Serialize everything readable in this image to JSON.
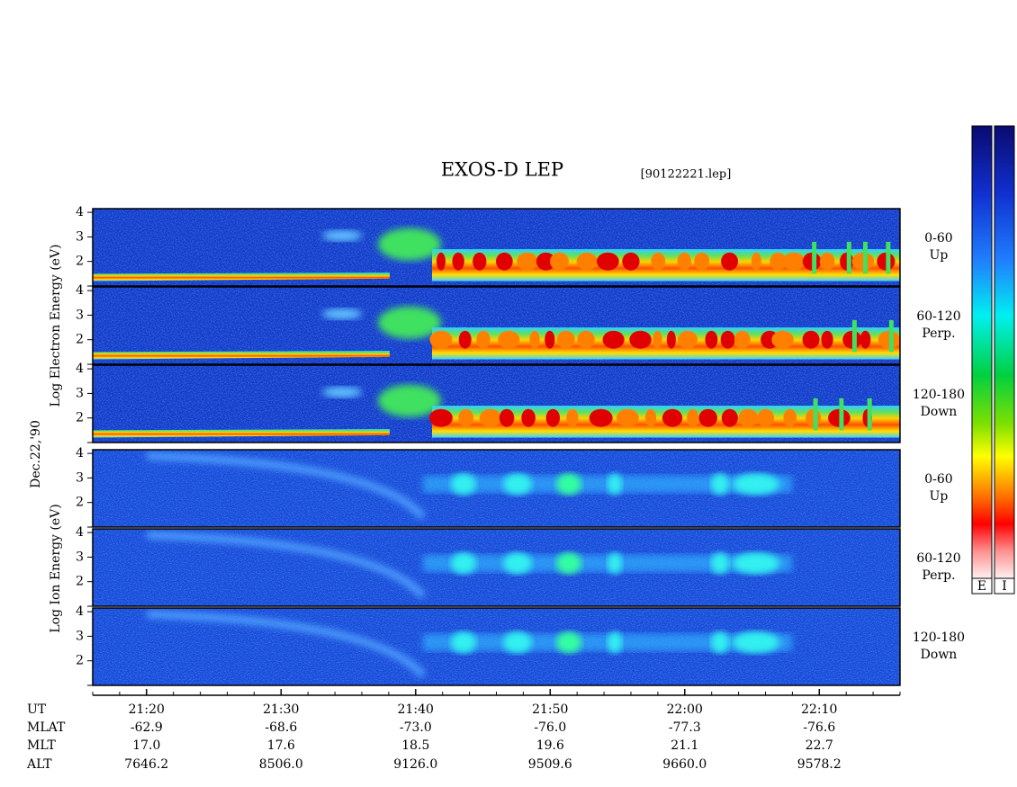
{
  "title": "EXOS-D LEP",
  "file": "[90122221.lep]",
  "date_label": "Dec.22,'90",
  "electron_axis_label": "Log  Electron  Energy (eV)",
  "ion_axis_label": "Log  Ion  Energy (eV)",
  "ylim": [
    1,
    4.15
  ],
  "yticks": [
    2,
    3,
    4
  ],
  "electron_panels": [
    {
      "range": "0-60",
      "direction": "Up"
    },
    {
      "range": "60-120",
      "direction": "Perp."
    },
    {
      "range": "120-180",
      "direction": "Down"
    }
  ],
  "ion_panels": [
    {
      "range": "0-60",
      "direction": "Up"
    },
    {
      "range": "60-120",
      "direction": "Perp."
    },
    {
      "range": "120-180",
      "direction": "Down"
    }
  ],
  "colorbar_labels": [
    "E",
    "I"
  ],
  "time_axis": {
    "xlim": [
      1276,
      1336
    ],
    "ticks": [
      {
        "value": 1280,
        "label": "21:20"
      },
      {
        "value": 1290,
        "label": "21:30"
      },
      {
        "value": 1300,
        "label": "21:40"
      },
      {
        "value": 1310,
        "label": "21:50"
      },
      {
        "value": 1320,
        "label": "22:00"
      },
      {
        "value": 1330,
        "label": "22:10"
      }
    ]
  },
  "ephemeris": [
    {
      "name": "UT"
    },
    {
      "name": "MLAT",
      "values": [
        "-62.9",
        "-68.6",
        "-73.0",
        "-76.0",
        "-77.3",
        "-76.6"
      ]
    },
    {
      "name": "MLT",
      "values": [
        "17.0",
        "17.6",
        "18.5",
        "19.6",
        "21.1",
        "22.7"
      ]
    },
    {
      "name": "ALT",
      "values": [
        "7646.2",
        "8506.0",
        "9126.0",
        "9509.6",
        "9660.0",
        "9578.2"
      ]
    }
  ]
}
